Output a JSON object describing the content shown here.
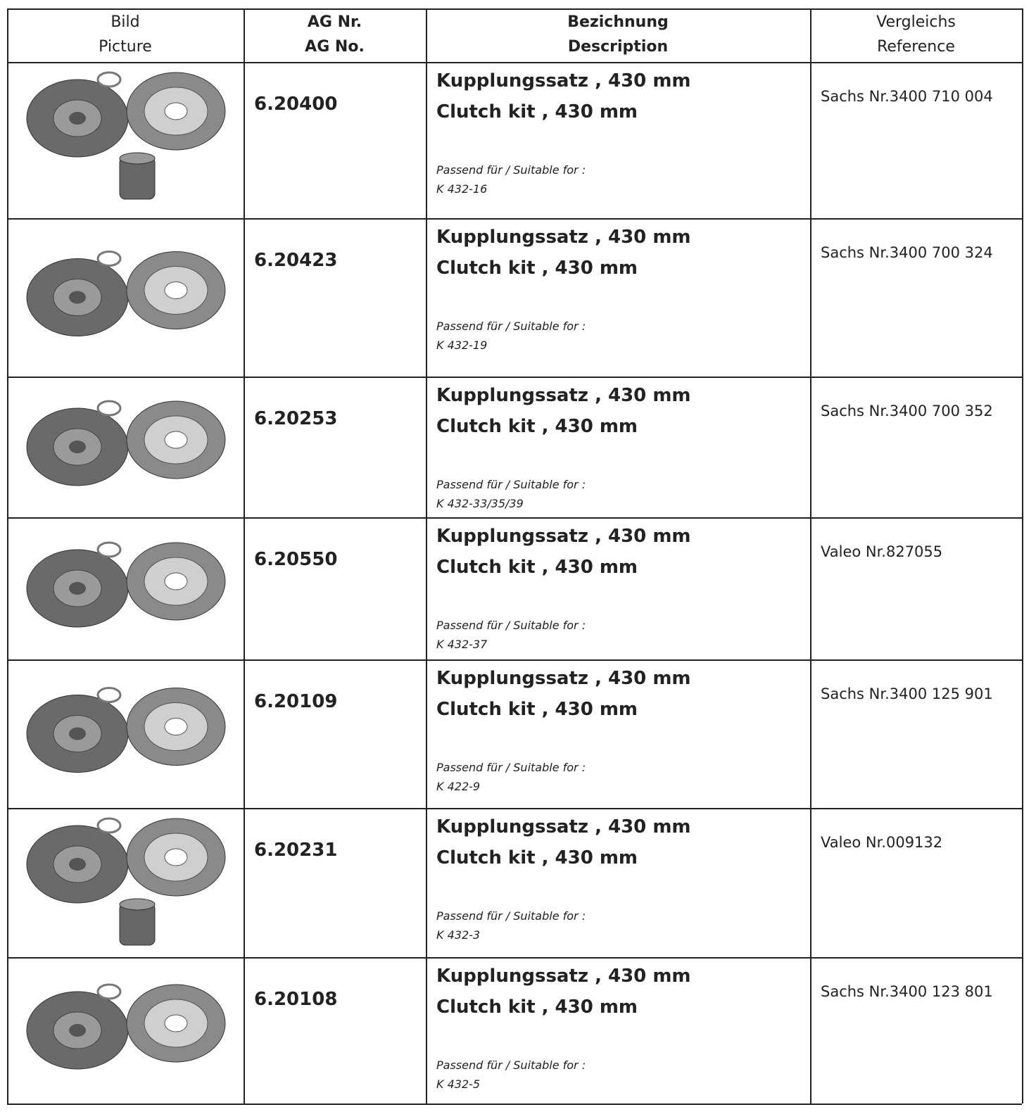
{
  "header": [
    [
      "Bild",
      "Picture"
    ],
    [
      "AG Nr.",
      "AG No."
    ],
    [
      "Bezichnung",
      "Description"
    ],
    [
      "Vergleichs",
      "Reference"
    ]
  ],
  "rows": [
    {
      "ag_no": "6.20400",
      "description_de": "Kupplungssatz , 430 mm",
      "description_en": "Clutch kit , 430 mm",
      "suitable_label": "Passend für / Suitable for :",
      "suitable_for": "K 432-16",
      "reference": "Sachs Nr.3400 710 004"
    },
    {
      "ag_no": "6.20423",
      "description_de": "Kupplungssatz , 430 mm",
      "description_en": "Clutch kit , 430 mm",
      "suitable_label": "Passend für / Suitable for :",
      "suitable_for": "K 432-19",
      "reference": "Sachs Nr.3400 700 324"
    },
    {
      "ag_no": "6.20253",
      "description_de": "Kupplungssatz , 430 mm",
      "description_en": "Clutch kit , 430 mm",
      "suitable_label": "Passend für / Suitable for :",
      "suitable_for": "K 432-33/35/39",
      "reference": "Sachs Nr.3400 700 352"
    },
    {
      "ag_no": "6.20550",
      "description_de": "Kupplungssatz , 430 mm",
      "description_en": "Clutch kit , 430 mm",
      "suitable_label": "Passend für / Suitable for :",
      "suitable_for": "K 432-37",
      "reference": "Valeo Nr.827055"
    },
    {
      "ag_no": "6.20109",
      "description_de": "Kupplungssatz , 430 mm",
      "description_en": "Clutch kit , 430 mm",
      "suitable_label": "Passend für / Suitable for :",
      "suitable_for": "K 422-9",
      "reference": "Sachs Nr.3400 125 901"
    },
    {
      "ag_no": "6.20231",
      "description_de": "Kupplungssatz , 430 mm",
      "description_en": "Clutch kit , 430 mm",
      "suitable_label": "Passend für / Suitable for :",
      "suitable_for": "K 432-3",
      "reference": "Valeo Nr.009132"
    },
    {
      "ag_no": "6.20108",
      "description_de": "Kupplungssatz , 430 mm",
      "description_en": "Clutch kit , 430 mm",
      "suitable_label": "Passend für / Suitable for :",
      "suitable_for": "K 432-5",
      "reference": "Sachs Nr.3400 123 801"
    }
  ]
}
